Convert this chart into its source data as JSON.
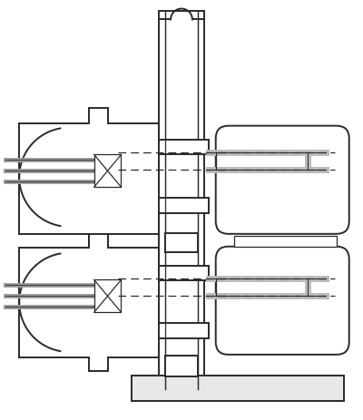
{
  "bg_color": "#ffffff",
  "line_color": "#2a2a2a",
  "lw": 1.4,
  "tlw": 0.9,
  "figsize": [
    4.0,
    4.63
  ],
  "dpi": 100
}
